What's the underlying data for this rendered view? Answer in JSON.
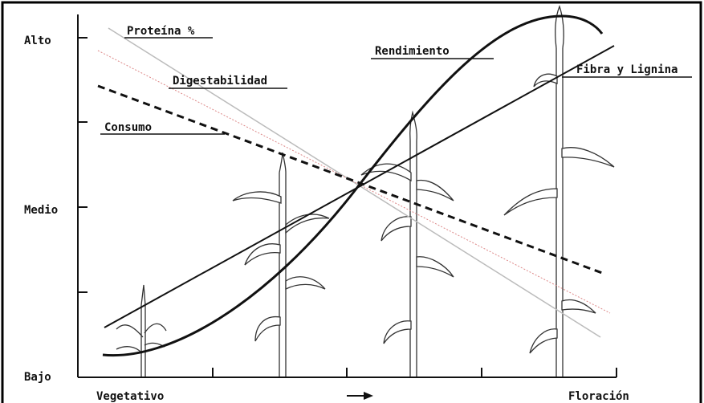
{
  "y_axis": {
    "labels": [
      "Alto",
      "Medio",
      "Bajo"
    ]
  },
  "x_axis": {
    "start": "Vegetativo",
    "end": "Floración"
  },
  "curves": [
    {
      "label": "Proteína %"
    },
    {
      "label": "Digestabilidad"
    },
    {
      "label": "Consumo"
    },
    {
      "label": "Rendimiento"
    },
    {
      "label": "Fibra y Lignina"
    }
  ]
}
